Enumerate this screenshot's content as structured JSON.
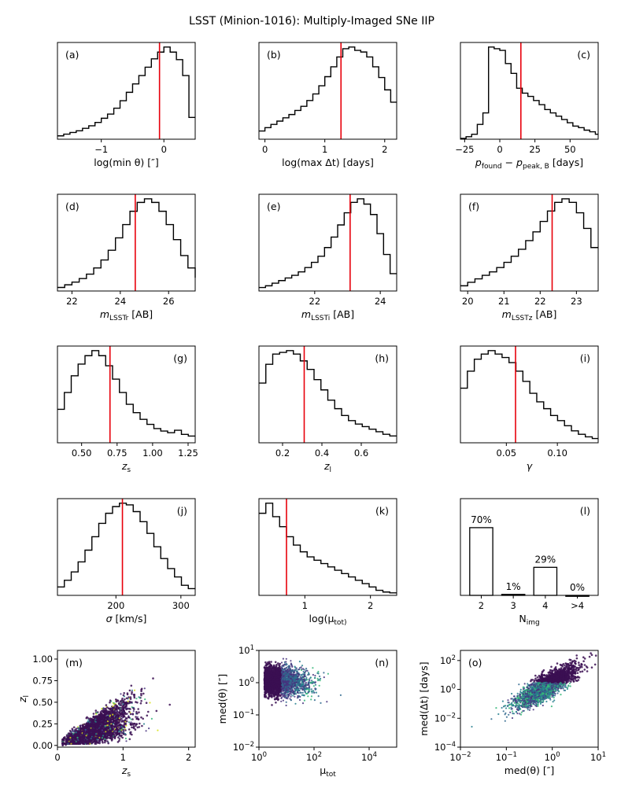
{
  "title": "LSST (Minion-1016): Multiply-Imaged SNe IIP",
  "chart_data": [
    {
      "id": "a",
      "type": "histogram",
      "label": "(a)",
      "label_pos": "top-left",
      "xlim": [
        -1.7,
        0.5
      ],
      "xticks": [
        -1,
        0
      ],
      "xticklabels": [
        "−1",
        "0"
      ],
      "xlabel": "log(min θ) [″]",
      "median": -0.07,
      "bin_start": -1.7,
      "bin_width": 0.1,
      "counts": [
        4,
        6,
        8,
        10,
        13,
        16,
        20,
        25,
        30,
        37,
        46,
        56,
        66,
        76,
        86,
        96,
        104,
        110,
        104,
        95,
        76,
        26
      ]
    },
    {
      "id": "b",
      "type": "histogram",
      "label": "(b)",
      "label_pos": "top-left",
      "xlim": [
        -0.1,
        2.2
      ],
      "xticks": [
        0,
        1,
        2
      ],
      "xticklabels": [
        "0",
        "1",
        "2"
      ],
      "xlabel": "log(max Δt) [days]",
      "median": 1.27,
      "bin_start": -0.1,
      "bin_width": 0.1,
      "counts": [
        10,
        14,
        18,
        22,
        26,
        30,
        35,
        40,
        47,
        55,
        65,
        76,
        88,
        100,
        110,
        112,
        108,
        106,
        100,
        88,
        75,
        60,
        45
      ]
    },
    {
      "id": "c",
      "type": "histogram",
      "label": "(c)",
      "label_pos": "top-right",
      "xlim": [
        -28,
        70
      ],
      "xticks": [
        -25,
        0,
        25,
        50
      ],
      "xticklabels": [
        "−25",
        "0",
        "25",
        "50"
      ],
      "xlabel": "p_found − p_peak,B [days]",
      "median": 15,
      "bin_start": -28,
      "bin_width": 4,
      "counts": [
        1,
        3,
        6,
        18,
        32,
        112,
        110,
        108,
        92,
        80,
        62,
        56,
        52,
        47,
        42,
        36,
        32,
        28,
        24,
        20,
        16,
        14,
        11,
        9,
        6
      ]
    },
    {
      "id": "d",
      "type": "histogram",
      "label": "(d)",
      "label_pos": "top-left",
      "xlim": [
        21.4,
        27.1
      ],
      "xticks": [
        22,
        24,
        26
      ],
      "xticklabels": [
        "22",
        "24",
        "26"
      ],
      "xlabel": "m_LSSTr [AB]",
      "median": 24.62,
      "bin_start": 21.4,
      "bin_width": 0.3,
      "counts": [
        4,
        7,
        10,
        14,
        19,
        26,
        35,
        46,
        60,
        75,
        90,
        100,
        104,
        100,
        90,
        75,
        58,
        40,
        26,
        15
      ]
    },
    {
      "id": "e",
      "type": "histogram",
      "label": "(e)",
      "label_pos": "top-left",
      "xlim": [
        20.3,
        24.5
      ],
      "xticks": [
        22,
        24
      ],
      "xticklabels": [
        "22",
        "24"
      ],
      "xlabel": "m_LSSTi [AB]",
      "median": 23.08,
      "bin_start": 20.3,
      "bin_width": 0.2,
      "counts": [
        4,
        6,
        9,
        12,
        15,
        18,
        22,
        27,
        33,
        40,
        50,
        62,
        76,
        90,
        102,
        106,
        100,
        88,
        66,
        42,
        20
      ]
    },
    {
      "id": "f",
      "type": "histogram",
      "label": "(f)",
      "label_pos": "top-left",
      "xlim": [
        19.8,
        23.6
      ],
      "xticks": [
        20,
        21,
        22,
        23
      ],
      "xticklabels": [
        "20",
        "21",
        "22",
        "23"
      ],
      "xlabel": "m_LSSTz [AB]",
      "median": 22.33,
      "bin_start": 19.8,
      "bin_width": 0.2,
      "counts": [
        6,
        10,
        14,
        18,
        22,
        27,
        33,
        40,
        48,
        58,
        68,
        80,
        92,
        102,
        106,
        102,
        90,
        72,
        50
      ]
    },
    {
      "id": "g",
      "type": "histogram",
      "label": "(g)",
      "label_pos": "top-right",
      "xlim": [
        0.33,
        1.3
      ],
      "xticks": [
        0.5,
        0.75,
        1.0,
        1.25
      ],
      "xticklabels": [
        "0.50",
        "0.75",
        "1.00",
        "1.25"
      ],
      "xlabel": "z_s",
      "median": 0.7,
      "bin_start": 0.33,
      "bin_width": 0.0485,
      "counts": [
        40,
        60,
        80,
        94,
        104,
        110,
        104,
        92,
        76,
        60,
        46,
        36,
        28,
        22,
        17,
        14,
        12,
        15,
        10,
        8
      ]
    },
    {
      "id": "h",
      "type": "histogram",
      "label": "(h)",
      "label_pos": "top-right",
      "xlim": [
        0.08,
        0.78
      ],
      "xticks": [
        0.2,
        0.4,
        0.6
      ],
      "xticklabels": [
        "0.2",
        "0.4",
        "0.6"
      ],
      "xlabel": "z_l",
      "median": 0.31,
      "bin_start": 0.08,
      "bin_width": 0.035,
      "counts": [
        70,
        92,
        104,
        106,
        108,
        104,
        96,
        86,
        74,
        62,
        50,
        40,
        32,
        26,
        22,
        19,
        16,
        13,
        10,
        8
      ]
    },
    {
      "id": "i",
      "type": "histogram",
      "label": "(i)",
      "label_pos": "top-right",
      "xlim": [
        0.005,
        0.14
      ],
      "xticks": [
        0.05,
        0.1
      ],
      "xticklabels": [
        "0.05",
        "0.10"
      ],
      "xlabel": "γ",
      "median": 0.059,
      "bin_start": 0.005,
      "bin_width": 0.0068,
      "counts": [
        64,
        84,
        98,
        104,
        108,
        104,
        100,
        94,
        84,
        72,
        58,
        48,
        40,
        32,
        26,
        20,
        14,
        10,
        7,
        5
      ]
    },
    {
      "id": "j",
      "type": "histogram",
      "label": "(j)",
      "label_pos": "top-right",
      "xlim": [
        110,
        322
      ],
      "xticks": [
        200,
        300
      ],
      "xticklabels": [
        "200",
        "300"
      ],
      "xlabel": "σ [km/s]",
      "median": 210,
      "bin_start": 110,
      "bin_width": 10.6,
      "counts": [
        10,
        18,
        28,
        40,
        54,
        70,
        86,
        98,
        106,
        110,
        108,
        100,
        88,
        74,
        58,
        44,
        32,
        22,
        12,
        8
      ]
    },
    {
      "id": "k",
      "type": "histogram",
      "label": "(k)",
      "label_pos": "top-right",
      "xlim": [
        0.3,
        2.4
      ],
      "xticks": [
        1,
        2
      ],
      "xticklabels": [
        "1",
        "2"
      ],
      "xlabel": "log(μ_tot)",
      "median": 0.72,
      "bin_start": 0.3,
      "bin_width": 0.105,
      "counts": [
        98,
        110,
        94,
        82,
        70,
        60,
        52,
        46,
        42,
        38,
        34,
        30,
        26,
        22,
        18,
        14,
        10,
        6,
        4,
        3
      ]
    },
    {
      "id": "l",
      "type": "bar",
      "label": "(l)",
      "label_pos": "top-right",
      "categories": [
        "2",
        "3",
        "4",
        ">4"
      ],
      "values": [
        70,
        1,
        29,
        0
      ],
      "value_labels": [
        "70%",
        "1%",
        "29%",
        "0%"
      ],
      "xlabel": "N_img",
      "ylim": [
        0,
        100
      ]
    },
    {
      "id": "m",
      "type": "scatter",
      "label": "(m)",
      "label_pos": "top-left",
      "xlim": [
        0,
        2.1
      ],
      "ylim": [
        -0.02,
        1.1
      ],
      "xticks": [
        0,
        1,
        2
      ],
      "xticklabels": [
        "0",
        "1",
        "2"
      ],
      "yticks": [
        0,
        0.25,
        0.5,
        0.75,
        1.0
      ],
      "yticklabels": [
        "0.00",
        "0.25",
        "0.50",
        "0.75",
        "1.00"
      ],
      "xlabel": "z_s",
      "ylabel": "z_l"
    },
    {
      "id": "n",
      "type": "scatter",
      "label": "(n)",
      "label_pos": "top-right",
      "xscale": "log",
      "yscale": "log",
      "xlim": [
        1,
        100000
      ],
      "ylim": [
        0.01,
        10
      ],
      "xticks": [
        1,
        100,
        10000
      ],
      "xticklabels": [
        "10^0",
        "10^2",
        "10^4"
      ],
      "yticks": [
        0.01,
        0.1,
        1,
        10
      ],
      "yticklabels": [
        "10^-2",
        "10^-1",
        "10^0",
        "10^1"
      ],
      "xlabel": "μ_tot",
      "ylabel": "med(θ) [″]"
    },
    {
      "id": "o",
      "type": "scatter",
      "label": "(o)",
      "label_pos": "top-left",
      "xscale": "log",
      "yscale": "log",
      "xlim": [
        0.01,
        10
      ],
      "ylim": [
        0.0001,
        500
      ],
      "xticks": [
        0.01,
        0.1,
        1,
        10
      ],
      "xticklabels": [
        "10^-2",
        "10^-1",
        "10^0",
        "10^1"
      ],
      "yticks": [
        0.0001,
        0.01,
        1,
        100
      ],
      "yticklabels": [
        "10^-4",
        "10^-2",
        "10^0",
        "10^2"
      ],
      "xlabel": "med(θ) [″]",
      "ylabel": "med(Δt) [days]"
    }
  ],
  "colors": {
    "hist": "#000000",
    "median": "#e8000b",
    "axes": "#000000",
    "scatter_dark": "#3b0f52",
    "scatter_mid": "#31688e",
    "scatter_light": "#35b779",
    "scatter_yellow": "#d8e219"
  }
}
